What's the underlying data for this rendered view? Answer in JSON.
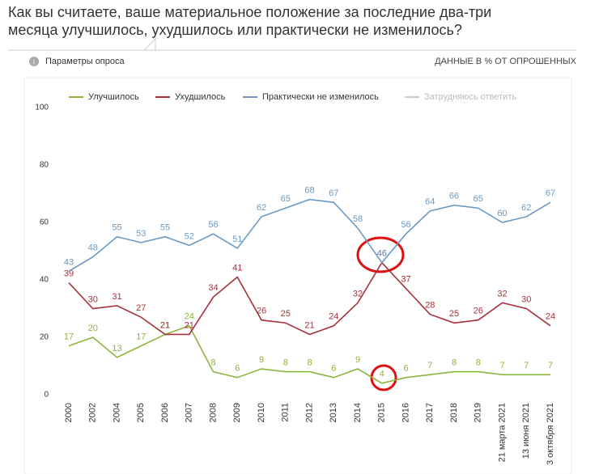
{
  "chart_data": {
    "type": "line",
    "title": "Как вы считаете, ваше материальное положение за последние два-три месяца улучшилось, ухудшилось или практически не изменилось?",
    "info": "Параметры опроса",
    "units_note": "ДАННЫЕ В % ОТ ОПРОШЕННЫХ",
    "categories": [
      "2000",
      "2002",
      "2004",
      "2005",
      "2006",
      "2007",
      "2008",
      "2009",
      "2010",
      "2011",
      "2012",
      "2013",
      "2014",
      "2015",
      "2016",
      "2017",
      "2018",
      "2019",
      "21 марта 2021",
      "13 июня 2021",
      "3 октября 2021"
    ],
    "series": [
      {
        "name": "Улучшилось",
        "color": "#8db43a",
        "values": [
          17,
          20,
          13,
          17,
          21,
          24,
          8,
          6,
          9,
          8,
          8,
          6,
          9,
          4,
          6,
          7,
          8,
          8,
          7,
          7,
          7
        ]
      },
      {
        "name": "Ухудшилось",
        "color": "#a8303a",
        "values": [
          39,
          30,
          31,
          27,
          21,
          21,
          34,
          41,
          26,
          25,
          21,
          24,
          32,
          46,
          37,
          28,
          25,
          26,
          32,
          30,
          24
        ]
      },
      {
        "name": "Практически не изменилось",
        "color": "#6a9ac4",
        "values": [
          43,
          48,
          55,
          53,
          55,
          52,
          56,
          51,
          62,
          65,
          68,
          67,
          58,
          46,
          56,
          64,
          66,
          65,
          60,
          62,
          67
        ]
      },
      {
        "name": "Затрудняюсь ответить",
        "color": "#c8c8c8",
        "hidden": true,
        "values": [
          null,
          null,
          null,
          null,
          null,
          null,
          null,
          null,
          null,
          null,
          null,
          null,
          null,
          null,
          null,
          null,
          null,
          null,
          null,
          null,
          null
        ]
      }
    ],
    "ylim": [
      0,
      100
    ],
    "yticks": [
      0,
      20,
      40,
      60,
      80,
      100
    ],
    "grid": false
  }
}
